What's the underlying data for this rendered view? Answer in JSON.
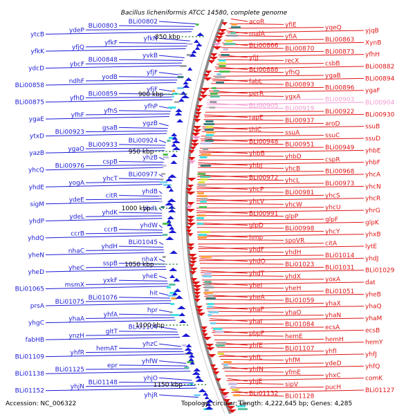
{
  "title": "Bacillus licheniformis ATCC 14580, complete genome",
  "accession": "Accession: NC_006322",
  "summary": "Topology: circular; Length: 4,222,645 bp; Genes: 4,285",
  "colors": {
    "forward": "#1a1ad6",
    "reverse": "#e01414",
    "pseudo": "#f29ad0",
    "backbone": "#8c8c8c",
    "tick": "#2e8b2e"
  },
  "ticks": [
    "850 kbp",
    "900 kbp",
    "950 kbp",
    "1000 kbp",
    "1050 kbp",
    "1100 kbp",
    "1150 kbp"
  ],
  "forward_labels": [
    "BLi00802",
    "BLi00803",
    "ydeP",
    "ytcB",
    "yfkN",
    "yfkF",
    "yfjQ",
    "yfkK",
    "yvkB",
    "BLi00848",
    "ybcF",
    "ydcD",
    "yfjF",
    "yodB",
    "ndhF",
    "BLi00858",
    "yfjF",
    "BLi00859",
    "yfhD",
    "BLi00875",
    "yfhP",
    "yfhS",
    "yfhF",
    "ygaE",
    "ygzB",
    "gsaB",
    "BLi00923",
    "ytxD",
    "BLi00924",
    "BLi00933",
    "ygaO",
    "yazB",
    "yhzB",
    "cspB",
    "BLi00976",
    "yhcQ",
    "BLi00977",
    "yhcT",
    "yogA",
    "yhdE",
    "yhdB",
    "citR",
    "ydeE",
    "sigM",
    "yhdL",
    "yhdK",
    "ydeL",
    "yhdP",
    "yhdW",
    "ccrB",
    "ccrB",
    "yhdQ",
    "BLi01045",
    "yhdH",
    "nhaC",
    "yheN",
    "nhaX",
    "sspB",
    "yheC",
    "yheD",
    "yheE",
    "yxkF",
    "msmX",
    "BLi01065",
    "hit",
    "BLi01076",
    "BLi01075",
    "prsA",
    "hpr",
    "yhfA",
    "yhaA",
    "yhgC",
    "BLi01104",
    "gltT",
    "ynzH",
    "fabHB",
    "yhzC",
    "hemAT",
    "yhfR",
    "BLi01109",
    "yhfW",
    "epr",
    "BLi01125",
    "BLi01138",
    "yhjO",
    "BLi01148",
    "yhjN",
    "BLi01152",
    "yhjR"
  ],
  "reverse_labels": [
    "acoR",
    "yfiE",
    "yqeQ",
    "yjqB",
    "malA",
    "yfiA",
    "BLi00863",
    "XynB",
    "BLi00866",
    "BLi00870",
    "BLi00873",
    "yfhH",
    "yfjJ",
    "recX",
    "csbB",
    "BLi00882",
    "BLi00888",
    "yfhQ",
    "ygaB",
    "BLi00894",
    "fabL",
    "BLi00893",
    "BLi00896",
    "ygaF",
    "perR",
    "ygxA",
    "BLi00903",
    "BLi00904",
    "BLi00905",
    "BLi00919",
    "BLi00922",
    "BLi00930",
    "rapE",
    "BLi00937",
    "aroD",
    "ssuB",
    "thiC",
    "ssuA",
    "ssuC",
    "ssuD",
    "BLi00948",
    "BLi00951",
    "BLi00949",
    "yhbE",
    "yhbB",
    "yhbD",
    "cspR",
    "yhbF",
    "yhbJ",
    "yhcB",
    "BLi00968",
    "yhcA",
    "BLi00972",
    "yhcL",
    "BLi00973",
    "yhcN",
    "yhcP",
    "BLi00981",
    "yhcS",
    "yhcR",
    "yhcV",
    "yhcW",
    "yhcU",
    "yhrG",
    "BLi00991",
    "glpP",
    "glpF",
    "glpK",
    "glpD",
    "BLi00998",
    "yhcY",
    "yhxB",
    "hmp",
    "spoVR",
    "citA",
    "lytE",
    "yhdF",
    "yhdH",
    "BLi01014",
    "yhdJ",
    "yhdO",
    "BLi01023",
    "BLi01031",
    "BLi01029",
    "yhdT",
    "yhdX",
    "yoxA",
    "dat",
    "yheI",
    "yheH",
    "BLi01051",
    "yheB",
    "yheA",
    "BLi01059",
    "yhaX",
    "yhaQ",
    "yhaP",
    "yhaO",
    "yhaN",
    "yhaM",
    "yhaI",
    "BLi01084",
    "ecsA",
    "ecsB",
    "pbpF",
    "hemE",
    "hemH",
    "hemY",
    "yhfE",
    "BLi01107",
    "yhfI",
    "yhfJ",
    "yhfL",
    "yhfM",
    "ydeD",
    "yhfQ",
    "yhfN",
    "yfmE",
    "yhxC",
    "comK",
    "yhjE",
    "sipV",
    "pucH",
    "BLi01127",
    "BLi01132",
    "BLi01128"
  ],
  "pseudo_labels": [
    "BLi00903",
    "BLi00904",
    "BLi00905",
    "BLi00919"
  ]
}
